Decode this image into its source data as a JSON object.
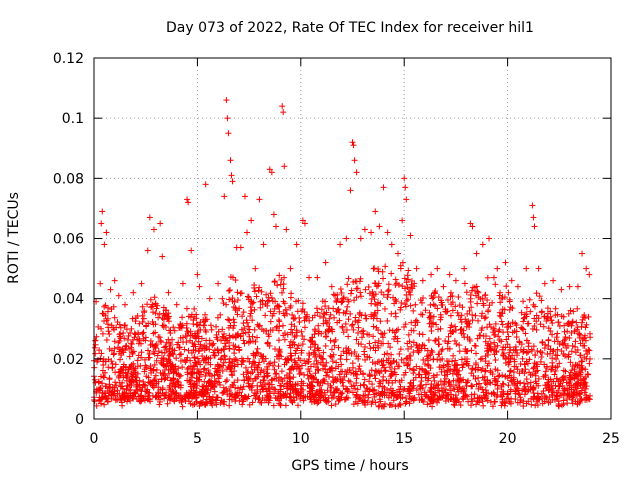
{
  "chart_data": {
    "type": "scatter",
    "title": "Day 073 of 2022, Rate Of TEC Index for receiver hil1",
    "xlabel": "GPS time / hours",
    "ylabel": "ROTI / TECUs",
    "xlim": [
      0,
      25
    ],
    "ylim": [
      0,
      0.12
    ],
    "xticks": [
      0,
      5,
      10,
      15,
      20,
      25
    ],
    "xtick_labels": [
      "0",
      "5",
      "10",
      "15",
      "20",
      "25"
    ],
    "yticks": [
      0,
      0.02,
      0.04,
      0.06,
      0.08,
      0.1,
      0.12
    ],
    "ytick_labels": [
      "0",
      "0.02",
      "0.04",
      "0.06",
      "0.08",
      "0.1",
      "0.12"
    ],
    "grid": true,
    "marker": "+",
    "color": "#ff0000",
    "series": [
      {
        "name": "ROTI",
        "points": [
          [
            0.1,
            0.039
          ],
          [
            0.3,
            0.045
          ],
          [
            0.35,
            0.065
          ],
          [
            0.4,
            0.069
          ],
          [
            0.5,
            0.058
          ],
          [
            0.6,
            0.062
          ],
          [
            0.8,
            0.043
          ],
          [
            1.0,
            0.046
          ],
          [
            1.2,
            0.041
          ],
          [
            1.5,
            0.038
          ],
          [
            1.9,
            0.042
          ],
          [
            2.3,
            0.045
          ],
          [
            2.6,
            0.056
          ],
          [
            2.7,
            0.067
          ],
          [
            2.9,
            0.063
          ],
          [
            3.2,
            0.065
          ],
          [
            3.3,
            0.054
          ],
          [
            3.6,
            0.042
          ],
          [
            4.0,
            0.038
          ],
          [
            4.3,
            0.045
          ],
          [
            4.5,
            0.073
          ],
          [
            4.55,
            0.072
          ],
          [
            4.7,
            0.056
          ],
          [
            5.0,
            0.048
          ],
          [
            5.1,
            0.044
          ],
          [
            5.4,
            0.078
          ],
          [
            5.6,
            0.04
          ],
          [
            6.0,
            0.045
          ],
          [
            6.3,
            0.074
          ],
          [
            6.4,
            0.106
          ],
          [
            6.45,
            0.1
          ],
          [
            6.5,
            0.095
          ],
          [
            6.6,
            0.086
          ],
          [
            6.65,
            0.081
          ],
          [
            6.7,
            0.079
          ],
          [
            6.9,
            0.057
          ],
          [
            7.1,
            0.057
          ],
          [
            7.3,
            0.074
          ],
          [
            7.4,
            0.062
          ],
          [
            7.6,
            0.066
          ],
          [
            7.8,
            0.05
          ],
          [
            8.0,
            0.073
          ],
          [
            8.2,
            0.058
          ],
          [
            8.5,
            0.083
          ],
          [
            8.6,
            0.082
          ],
          [
            8.7,
            0.068
          ],
          [
            8.8,
            0.064
          ],
          [
            9.1,
            0.104
          ],
          [
            9.15,
            0.102
          ],
          [
            9.2,
            0.084
          ],
          [
            9.3,
            0.063
          ],
          [
            9.5,
            0.05
          ],
          [
            9.8,
            0.058
          ],
          [
            10.1,
            0.066
          ],
          [
            10.2,
            0.065
          ],
          [
            10.4,
            0.047
          ],
          [
            10.8,
            0.047
          ],
          [
            11.2,
            0.052
          ],
          [
            11.5,
            0.044
          ],
          [
            11.9,
            0.058
          ],
          [
            12.2,
            0.06
          ],
          [
            12.4,
            0.076
          ],
          [
            12.5,
            0.092
          ],
          [
            12.55,
            0.091
          ],
          [
            12.6,
            0.086
          ],
          [
            12.7,
            0.082
          ],
          [
            12.9,
            0.06
          ],
          [
            13.1,
            0.063
          ],
          [
            13.4,
            0.062
          ],
          [
            13.6,
            0.069
          ],
          [
            13.8,
            0.064
          ],
          [
            14.0,
            0.077
          ],
          [
            14.2,
            0.062
          ],
          [
            14.4,
            0.058
          ],
          [
            14.7,
            0.055
          ],
          [
            14.9,
            0.066
          ],
          [
            15.0,
            0.08
          ],
          [
            15.05,
            0.077
          ],
          [
            15.1,
            0.073
          ],
          [
            15.3,
            0.061
          ],
          [
            15.6,
            0.05
          ],
          [
            15.9,
            0.046
          ],
          [
            16.3,
            0.048
          ],
          [
            16.6,
            0.05
          ],
          [
            16.9,
            0.044
          ],
          [
            17.2,
            0.048
          ],
          [
            17.5,
            0.046
          ],
          [
            17.9,
            0.05
          ],
          [
            18.2,
            0.065
          ],
          [
            18.3,
            0.064
          ],
          [
            18.5,
            0.055
          ],
          [
            18.8,
            0.058
          ],
          [
            19.1,
            0.06
          ],
          [
            19.5,
            0.05
          ],
          [
            19.9,
            0.052
          ],
          [
            20.2,
            0.046
          ],
          [
            20.5,
            0.044
          ],
          [
            20.9,
            0.05
          ],
          [
            21.2,
            0.071
          ],
          [
            21.25,
            0.067
          ],
          [
            21.3,
            0.064
          ],
          [
            21.5,
            0.05
          ],
          [
            21.8,
            0.045
          ],
          [
            22.2,
            0.046
          ],
          [
            22.6,
            0.043
          ],
          [
            23.0,
            0.044
          ],
          [
            23.4,
            0.044
          ],
          [
            23.6,
            0.055
          ],
          [
            23.8,
            0.05
          ],
          [
            23.95,
            0.048
          ]
        ],
        "base_envelope": [
          [
            0.0,
            0.031
          ],
          [
            0.5,
            0.04
          ],
          [
            1.0,
            0.036
          ],
          [
            1.5,
            0.03
          ],
          [
            2.0,
            0.035
          ],
          [
            2.5,
            0.04
          ],
          [
            3.0,
            0.042
          ],
          [
            3.5,
            0.036
          ],
          [
            4.0,
            0.031
          ],
          [
            4.5,
            0.036
          ],
          [
            5.0,
            0.038
          ],
          [
            5.5,
            0.033
          ],
          [
            6.0,
            0.032
          ],
          [
            6.5,
            0.048
          ],
          [
            7.0,
            0.045
          ],
          [
            7.5,
            0.046
          ],
          [
            8.0,
            0.045
          ],
          [
            8.5,
            0.044
          ],
          [
            9.0,
            0.048
          ],
          [
            9.5,
            0.042
          ],
          [
            10.0,
            0.04
          ],
          [
            10.5,
            0.036
          ],
          [
            11.0,
            0.038
          ],
          [
            11.5,
            0.04
          ],
          [
            12.0,
            0.044
          ],
          [
            12.5,
            0.05
          ],
          [
            13.0,
            0.046
          ],
          [
            13.5,
            0.05
          ],
          [
            14.0,
            0.052
          ],
          [
            14.5,
            0.05
          ],
          [
            15.0,
            0.055
          ],
          [
            15.5,
            0.046
          ],
          [
            16.0,
            0.04
          ],
          [
            16.5,
            0.042
          ],
          [
            17.0,
            0.042
          ],
          [
            17.5,
            0.04
          ],
          [
            18.0,
            0.046
          ],
          [
            18.5,
            0.045
          ],
          [
            19.0,
            0.048
          ],
          [
            19.5,
            0.044
          ],
          [
            20.0,
            0.042
          ],
          [
            20.5,
            0.038
          ],
          [
            21.0,
            0.04
          ],
          [
            21.5,
            0.042
          ],
          [
            22.0,
            0.038
          ],
          [
            22.5,
            0.035
          ],
          [
            23.0,
            0.035
          ],
          [
            23.5,
            0.038
          ],
          [
            24.0,
            0.035
          ]
        ]
      }
    ]
  }
}
